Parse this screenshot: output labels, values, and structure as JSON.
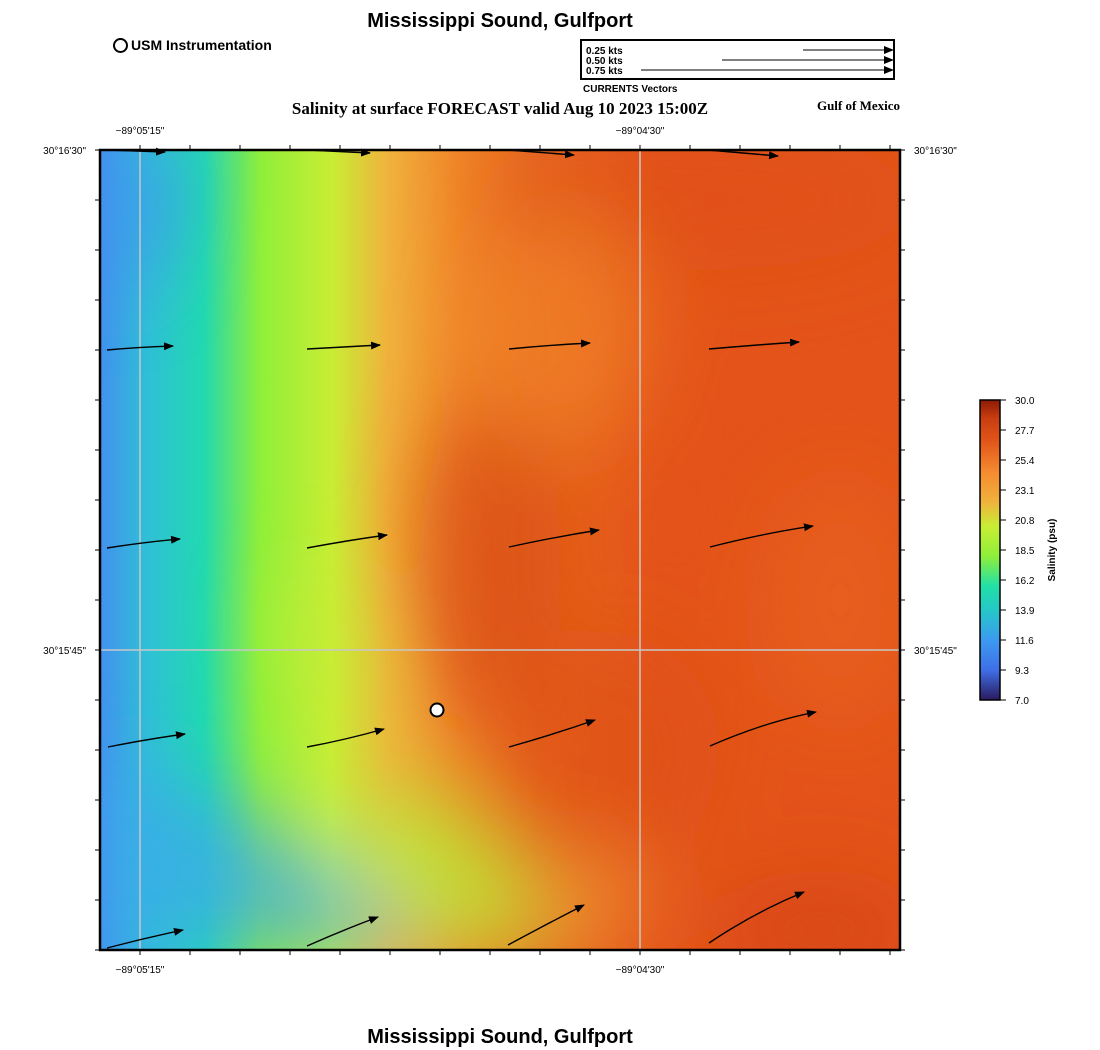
{
  "header": {
    "title": "Mississippi Sound, Gulfport",
    "subtitle": "Salinity at surface FORECAST valid Aug 10 2023 15:00Z",
    "region": "Gulf of Mexico"
  },
  "footer": {
    "title": "Mississippi Sound, Gulfport"
  },
  "station_legend": {
    "label": "USM Instrumentation"
  },
  "vector_legend": {
    "caption": "CURRENTS Vectors",
    "entries": [
      {
        "label": "0.25 kts",
        "speed_kts": 0.25
      },
      {
        "label": "0.50 kts",
        "speed_kts": 0.5
      },
      {
        "label": "0.75 kts",
        "speed_kts": 0.75
      }
    ]
  },
  "map": {
    "longitude_labels": [
      "−89°05'15\"",
      "−89°04'30\""
    ],
    "latitude_labels": [
      "30°16'30\"",
      "30°15'45\""
    ],
    "station": {
      "name": "USM Instrumentation"
    }
  },
  "colorbar": {
    "label": "Salinity (psu)",
    "ticks": [
      "30.0",
      "27.7",
      "25.4",
      "23.1",
      "20.8",
      "18.5",
      "16.2",
      "13.9",
      "11.6",
      "9.3",
      "7.0"
    ],
    "min": 7.0,
    "max": 30.0,
    "colors": [
      "#2a1a5e",
      "#3f6fe8",
      "#3c9af0",
      "#25c8c8",
      "#21e0a6",
      "#8fef3a",
      "#c9ed34",
      "#f0b23c",
      "#f58b30",
      "#e2561a",
      "#c83d10",
      "#8c1a04"
    ]
  }
}
